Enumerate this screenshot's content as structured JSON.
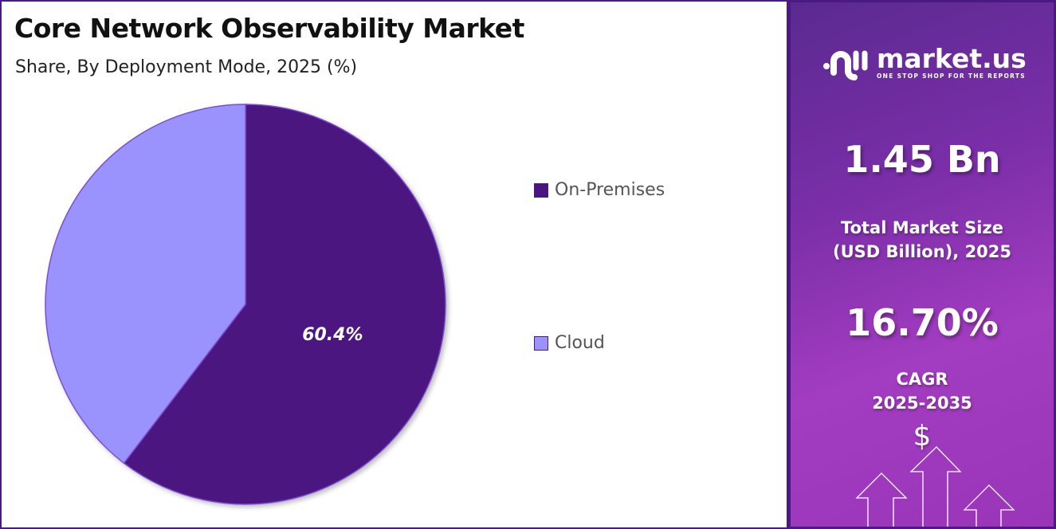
{
  "title": "Core Network Observability Market",
  "subtitle": "Share, By Deployment Mode, 2025 (%)",
  "chart_data": {
    "type": "pie",
    "title": "Core Network Observability Market",
    "subtitle": "Share, By Deployment Mode, 2025 (%)",
    "categories": [
      "On-Premises",
      "Cloud"
    ],
    "values": [
      60.4,
      39.6
    ],
    "data_labels": [
      "60.4%",
      ""
    ],
    "colors": [
      "#4b1580",
      "#9b93fd"
    ],
    "legend_position": "right"
  },
  "sidebar": {
    "logo_name": "market.us",
    "logo_tagline": "ONE STOP SHOP FOR THE REPORTS",
    "market_size": "1.45 Bn",
    "market_size_label_1": "Total Market Size",
    "market_size_label_2": "(USD Billion), 2025",
    "cagr": "16.70%",
    "cagr_label_1": "CAGR",
    "cagr_label_2": "2025-2035",
    "dollar": "$"
  }
}
